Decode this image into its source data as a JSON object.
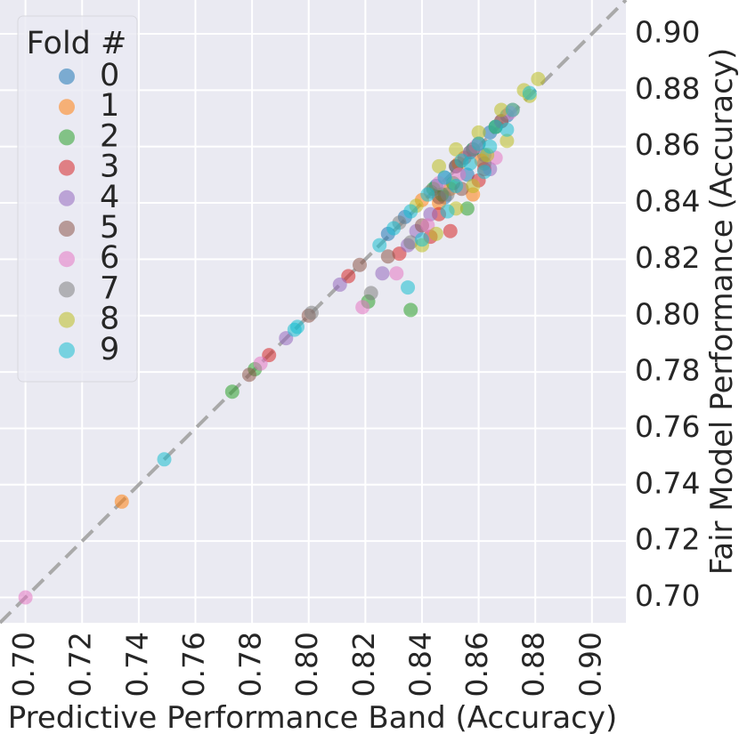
{
  "chart_data": {
    "type": "scatter",
    "xlabel": "Predictive Performance Band (Accuracy)",
    "ylabel": "Fair Model Performance (Accuracy)",
    "xlim": [
      0.691,
      0.912
    ],
    "ylim": [
      0.691,
      0.912
    ],
    "xticks": [
      "0.70",
      "0.72",
      "0.74",
      "0.76",
      "0.78",
      "0.80",
      "0.82",
      "0.84",
      "0.86",
      "0.88",
      "0.90"
    ],
    "yticks": [
      "0.70",
      "0.72",
      "0.74",
      "0.76",
      "0.78",
      "0.80",
      "0.82",
      "0.84",
      "0.86",
      "0.88",
      "0.90"
    ],
    "grid": true,
    "reference_line": "y = x (dashed)",
    "legend": {
      "title": "Fold #",
      "placement": "top-left"
    },
    "series": [
      {
        "name": "0",
        "color": "#1f77b4",
        "points": [
          [
            0.845,
            0.846
          ],
          [
            0.852,
            0.853
          ],
          [
            0.858,
            0.859
          ],
          [
            0.864,
            0.865
          ],
          [
            0.87,
            0.871
          ],
          [
            0.848,
            0.842
          ],
          [
            0.856,
            0.85
          ],
          [
            0.862,
            0.857
          ],
          [
            0.834,
            0.835
          ],
          [
            0.828,
            0.829
          ]
        ]
      },
      {
        "name": "1",
        "color": "#ff7f0e",
        "points": [
          [
            0.734,
            0.734
          ],
          [
            0.858,
            0.843
          ],
          [
            0.846,
            0.84
          ],
          [
            0.84,
            0.841
          ],
          [
            0.853,
            0.854
          ],
          [
            0.866,
            0.867
          ],
          [
            0.872,
            0.873
          ],
          [
            0.85,
            0.845
          ],
          [
            0.861,
            0.855
          ]
        ]
      },
      {
        "name": "2",
        "color": "#2ca02c",
        "points": [
          [
            0.773,
            0.773
          ],
          [
            0.781,
            0.781
          ],
          [
            0.836,
            0.802
          ],
          [
            0.821,
            0.805
          ],
          [
            0.856,
            0.838
          ],
          [
            0.847,
            0.843
          ],
          [
            0.844,
            0.845
          ],
          [
            0.858,
            0.859
          ],
          [
            0.866,
            0.867
          ],
          [
            0.851,
            0.847
          ]
        ]
      },
      {
        "name": "3",
        "color": "#d62728",
        "points": [
          [
            0.786,
            0.786
          ],
          [
            0.814,
            0.814
          ],
          [
            0.85,
            0.83
          ],
          [
            0.86,
            0.848
          ],
          [
            0.832,
            0.822
          ],
          [
            0.846,
            0.836
          ],
          [
            0.855,
            0.856
          ],
          [
            0.868,
            0.869
          ],
          [
            0.843,
            0.828
          ],
          [
            0.862,
            0.852
          ]
        ]
      },
      {
        "name": "4",
        "color": "#9467bd",
        "points": [
          [
            0.792,
            0.792
          ],
          [
            0.811,
            0.811
          ],
          [
            0.826,
            0.815
          ],
          [
            0.838,
            0.83
          ],
          [
            0.848,
            0.849
          ],
          [
            0.857,
            0.858
          ],
          [
            0.864,
            0.852
          ],
          [
            0.843,
            0.836
          ],
          [
            0.835,
            0.825
          ]
        ]
      },
      {
        "name": "5",
        "color": "#8c564b",
        "points": [
          [
            0.779,
            0.779
          ],
          [
            0.8,
            0.8
          ],
          [
            0.818,
            0.818
          ],
          [
            0.828,
            0.821
          ],
          [
            0.846,
            0.842
          ],
          [
            0.852,
            0.853
          ],
          [
            0.86,
            0.861
          ],
          [
            0.84,
            0.832
          ],
          [
            0.854,
            0.845
          ]
        ]
      },
      {
        "name": "6",
        "color": "#e377c2",
        "points": [
          [
            0.7,
            0.7
          ],
          [
            0.783,
            0.783
          ],
          [
            0.819,
            0.803
          ],
          [
            0.831,
            0.815
          ],
          [
            0.842,
            0.832
          ],
          [
            0.853,
            0.85
          ],
          [
            0.859,
            0.86
          ],
          [
            0.866,
            0.856
          ],
          [
            0.846,
            0.847
          ],
          [
            0.871,
            0.872
          ]
        ]
      },
      {
        "name": "7",
        "color": "#7f7f7f",
        "points": [
          [
            0.801,
            0.801
          ],
          [
            0.822,
            0.808
          ],
          [
            0.836,
            0.826
          ],
          [
            0.849,
            0.843
          ],
          [
            0.857,
            0.858
          ],
          [
            0.843,
            0.844
          ],
          [
            0.862,
            0.854
          ],
          [
            0.832,
            0.833
          ],
          [
            0.868,
            0.869
          ]
        ]
      },
      {
        "name": "8",
        "color": "#bcbd22",
        "points": [
          [
            0.845,
            0.829
          ],
          [
            0.852,
            0.838
          ],
          [
            0.858,
            0.846
          ],
          [
            0.846,
            0.853
          ],
          [
            0.852,
            0.859
          ],
          [
            0.86,
            0.865
          ],
          [
            0.868,
            0.873
          ],
          [
            0.876,
            0.88
          ],
          [
            0.881,
            0.884
          ],
          [
            0.838,
            0.839
          ],
          [
            0.863,
            0.857
          ],
          [
            0.84,
            0.825
          ],
          [
            0.87,
            0.862
          ],
          [
            0.878,
            0.878
          ]
        ]
      },
      {
        "name": "9",
        "color": "#17becf",
        "points": [
          [
            0.749,
            0.749
          ],
          [
            0.795,
            0.795
          ],
          [
            0.796,
            0.796
          ],
          [
            0.835,
            0.81
          ],
          [
            0.84,
            0.827
          ],
          [
            0.849,
            0.837
          ],
          [
            0.825,
            0.825
          ],
          [
            0.83,
            0.831
          ],
          [
            0.836,
            0.837
          ],
          [
            0.842,
            0.843
          ],
          [
            0.848,
            0.849
          ],
          [
            0.854,
            0.855
          ],
          [
            0.86,
            0.861
          ],
          [
            0.866,
            0.867
          ],
          [
            0.872,
            0.873
          ],
          [
            0.878,
            0.879
          ],
          [
            0.857,
            0.854
          ],
          [
            0.864,
            0.86
          ],
          [
            0.87,
            0.866
          ],
          [
            0.862,
            0.851
          ],
          [
            0.852,
            0.846
          ]
        ]
      }
    ]
  }
}
